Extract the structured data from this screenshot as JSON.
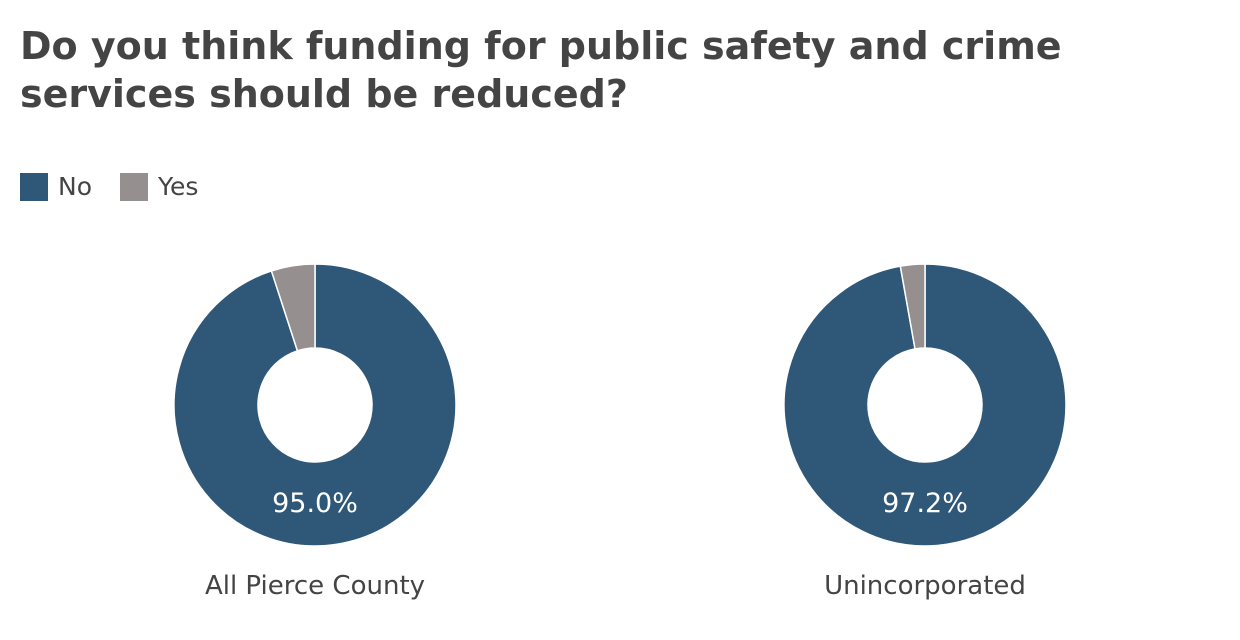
{
  "chart_data": {
    "type": "pie",
    "title": "Do you think funding for public safety and crime services should be reduced?",
    "legend": {
      "placement": "top-left",
      "entries": [
        {
          "name": "No",
          "color": "#2f5778"
        },
        {
          "name": "Yes",
          "color": "#958f8f"
        }
      ]
    },
    "charts": [
      {
        "label": "All Pierce County",
        "slices": [
          {
            "name": "No",
            "value": 95.0,
            "display": "95.0%"
          },
          {
            "name": "Yes",
            "value": 5.0
          }
        ]
      },
      {
        "label": "Unincorporated",
        "slices": [
          {
            "name": "No",
            "value": 97.2,
            "display": "97.2%"
          },
          {
            "name": "Yes",
            "value": 2.8
          }
        ]
      }
    ]
  }
}
